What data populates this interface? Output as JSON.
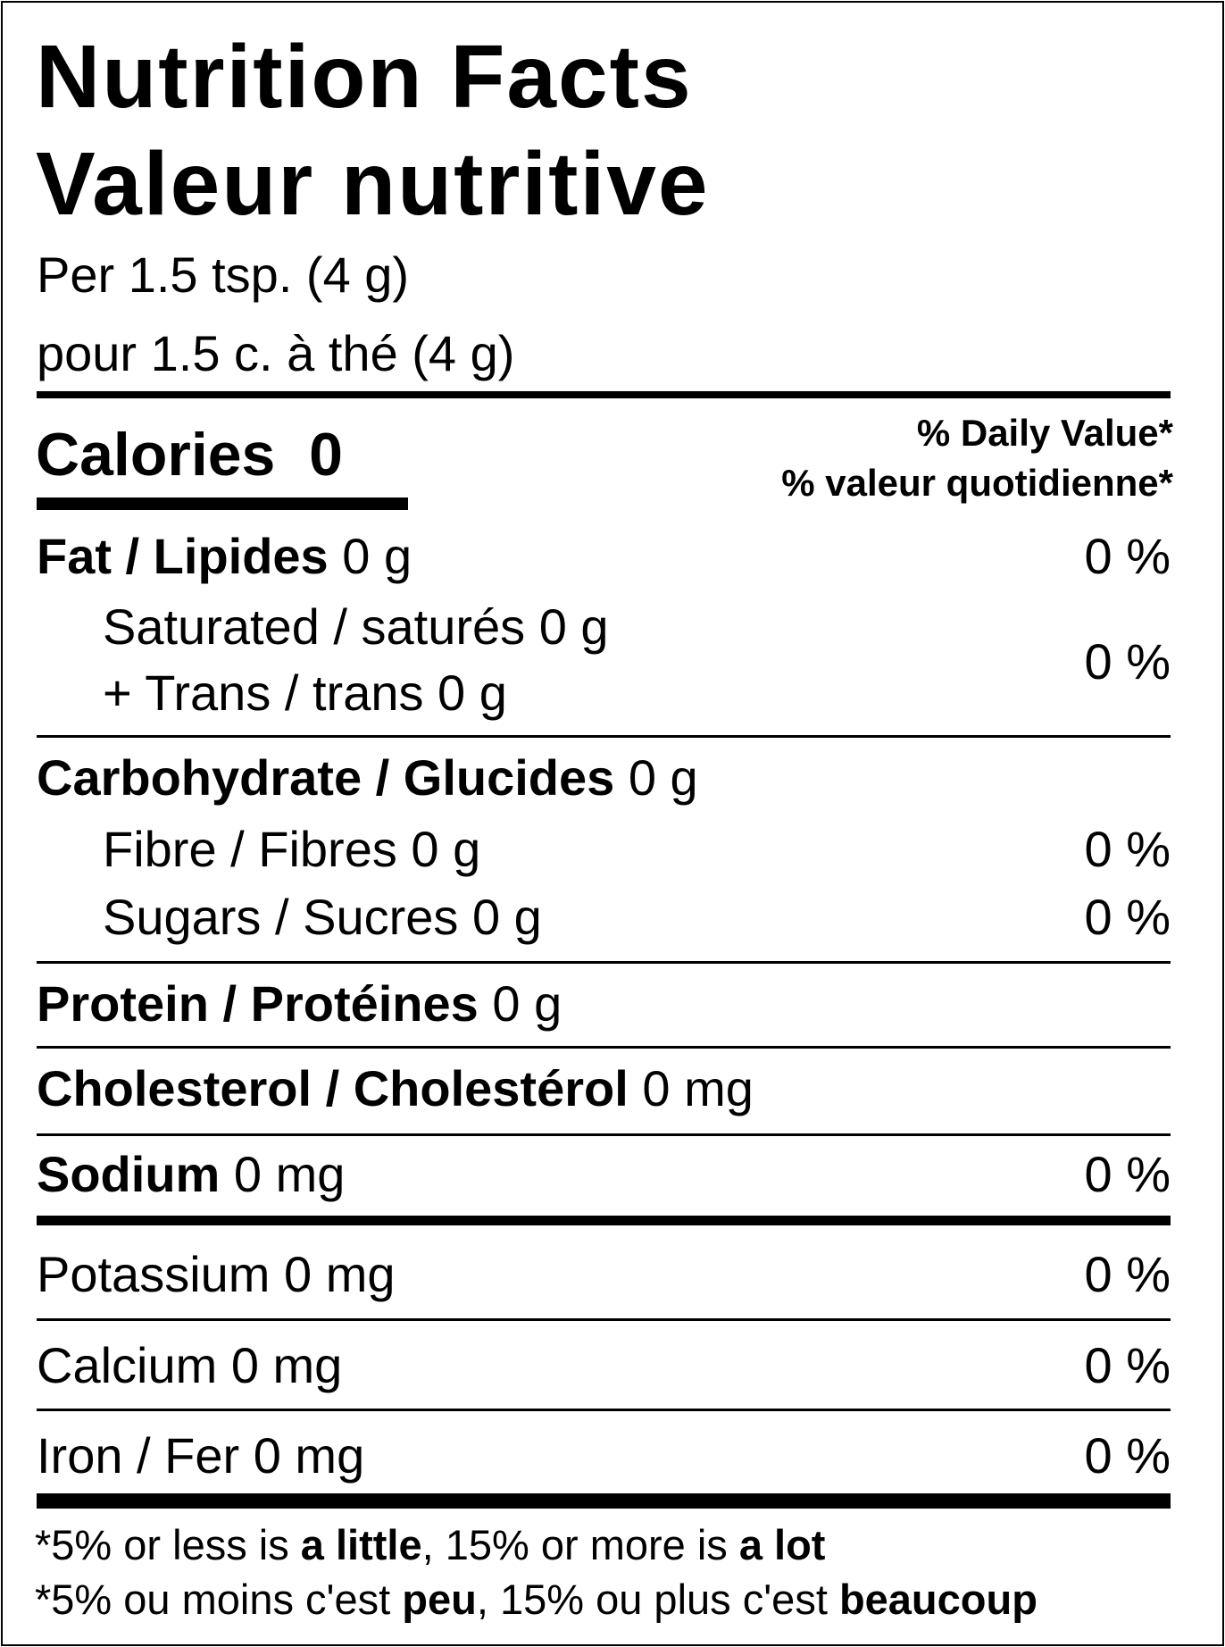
{
  "title_en": "Nutrition Facts",
  "title_fr": "Valeur nutritive",
  "serving_en": "Per 1.5 tsp. (4 g)",
  "serving_fr": "pour 1.5 c. à thé (4 g)",
  "calories": {
    "label": "Calories",
    "value": "0"
  },
  "dv_header_en": "% Daily Value*",
  "dv_header_fr": "% valeur quotidienne*",
  "nutrients": {
    "fat": {
      "label": "Fat / Lipides",
      "amount": "0 g",
      "dv": "0 %"
    },
    "saturated": {
      "label": "Saturated / saturés 0 g"
    },
    "trans": {
      "label": "+ Trans / trans 0 g",
      "dv": "0 %"
    },
    "carbohydrate": {
      "label": "Carbohydrate / Glucides",
      "amount": "0 g"
    },
    "fibre": {
      "label": "Fibre / Fibres 0 g",
      "dv": "0 %"
    },
    "sugars": {
      "label": "Sugars / Sucres 0 g",
      "dv": "0 %"
    },
    "protein": {
      "label": "Protein / Protéines",
      "amount": "0 g"
    },
    "cholesterol": {
      "label": "Cholesterol / Cholestérol",
      "amount": "0 mg"
    },
    "sodium": {
      "label": "Sodium",
      "amount": "0 mg",
      "dv": "0 %"
    },
    "potassium": {
      "label": "Potassium 0 mg",
      "dv": "0 %"
    },
    "calcium": {
      "label": "Calcium 0 mg",
      "dv": "0 %"
    },
    "iron": {
      "label": "Iron / Fer 0 mg",
      "dv": "0 %"
    }
  },
  "footnote_en": {
    "a": "*5% or less is ",
    "b": "a little",
    "c": ", 15% or more is ",
    "d": "a lot"
  },
  "footnote_fr": {
    "a": "*5% ou moins c'est ",
    "b": "peu",
    "c": ", 15% ou plus c'est ",
    "d": "beaucoup"
  }
}
